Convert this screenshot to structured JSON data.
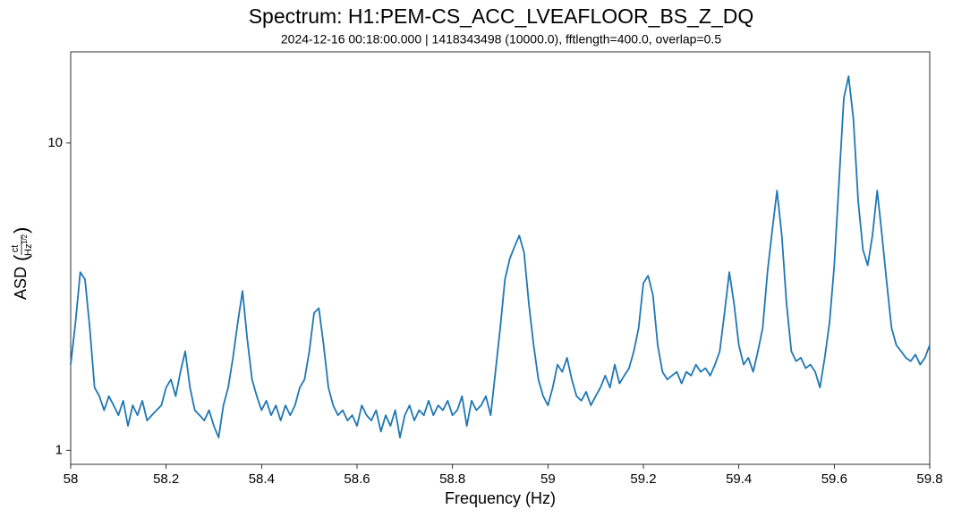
{
  "chart_data": {
    "type": "line",
    "title": "Spectrum: H1:PEM-CS_ACC_LVEAFLOOR_BS_Z_DQ",
    "subtitle": "2024-12-16 00:18:00.000 | 1418343498 (10000.0), fftlength=400.0, overlap=0.5",
    "xlabel": "Frequency (Hz)",
    "ylabel": {
      "text": "ASD",
      "numerator": "ct",
      "denominator": "Hz",
      "exponent": "1/2"
    },
    "xlim": [
      58,
      59.8
    ],
    "xticks": [
      58,
      58.2,
      58.4,
      58.6,
      58.8,
      59,
      59.2,
      59.4,
      59.6,
      59.8
    ],
    "ylim": [
      0.9,
      19.8
    ],
    "yticks": [
      1,
      10
    ],
    "yscale": "log",
    "x": [
      58.0,
      58.01,
      58.02,
      58.03,
      58.04,
      58.05,
      58.06,
      58.07,
      58.08,
      58.09,
      58.1,
      58.11,
      58.12,
      58.13,
      58.14,
      58.15,
      58.16,
      58.17,
      58.18,
      58.19,
      58.2,
      58.21,
      58.22,
      58.23,
      58.24,
      58.25,
      58.26,
      58.27,
      58.28,
      58.29,
      58.3,
      58.31,
      58.32,
      58.33,
      58.34,
      58.35,
      58.36,
      58.37,
      58.38,
      58.39,
      58.4,
      58.41,
      58.42,
      58.43,
      58.44,
      58.45,
      58.46,
      58.47,
      58.48,
      58.49,
      58.5,
      58.51,
      58.52,
      58.53,
      58.54,
      58.55,
      58.56,
      58.57,
      58.58,
      58.59,
      58.6,
      58.61,
      58.62,
      58.63,
      58.64,
      58.65,
      58.66,
      58.67,
      58.68,
      58.69,
      58.7,
      58.71,
      58.72,
      58.73,
      58.74,
      58.75,
      58.76,
      58.77,
      58.78,
      58.79,
      58.8,
      58.81,
      58.82,
      58.83,
      58.84,
      58.85,
      58.86,
      58.87,
      58.88,
      58.89,
      58.9,
      58.91,
      58.92,
      58.93,
      58.94,
      58.95,
      58.96,
      58.97,
      58.98,
      58.99,
      59.0,
      59.01,
      59.02,
      59.03,
      59.04,
      59.05,
      59.06,
      59.07,
      59.08,
      59.09,
      59.1,
      59.11,
      59.12,
      59.13,
      59.14,
      59.15,
      59.16,
      59.17,
      59.18,
      59.19,
      59.2,
      59.21,
      59.22,
      59.23,
      59.24,
      59.25,
      59.26,
      59.27,
      59.28,
      59.29,
      59.3,
      59.31,
      59.32,
      59.33,
      59.34,
      59.35,
      59.36,
      59.37,
      59.38,
      59.39,
      59.4,
      59.41,
      59.42,
      59.43,
      59.44,
      59.45,
      59.46,
      59.47,
      59.48,
      59.49,
      59.5,
      59.51,
      59.52,
      59.53,
      59.54,
      59.55,
      59.56,
      59.57,
      59.58,
      59.59,
      59.6,
      59.61,
      59.62,
      59.63,
      59.64,
      59.65,
      59.66,
      59.67,
      59.68,
      59.69,
      59.7,
      59.71,
      59.72,
      59.73,
      59.74,
      59.75,
      59.76,
      59.77,
      59.78,
      59.79,
      59.8
    ],
    "series": [
      {
        "color": "#1f77b4",
        "values": [
          1.9,
          2.6,
          3.8,
          3.6,
          2.5,
          1.6,
          1.5,
          1.35,
          1.5,
          1.4,
          1.3,
          1.45,
          1.2,
          1.4,
          1.3,
          1.45,
          1.25,
          1.3,
          1.35,
          1.4,
          1.6,
          1.7,
          1.5,
          1.8,
          2.1,
          1.6,
          1.35,
          1.3,
          1.25,
          1.35,
          1.2,
          1.1,
          1.4,
          1.6,
          2.0,
          2.6,
          3.3,
          2.3,
          1.7,
          1.5,
          1.35,
          1.45,
          1.3,
          1.4,
          1.25,
          1.4,
          1.3,
          1.4,
          1.6,
          1.7,
          2.1,
          2.8,
          2.9,
          2.2,
          1.6,
          1.4,
          1.3,
          1.35,
          1.25,
          1.3,
          1.2,
          1.4,
          1.3,
          1.25,
          1.35,
          1.15,
          1.3,
          1.2,
          1.35,
          1.1,
          1.3,
          1.4,
          1.25,
          1.35,
          1.3,
          1.45,
          1.3,
          1.4,
          1.35,
          1.45,
          1.3,
          1.35,
          1.5,
          1.2,
          1.45,
          1.35,
          1.4,
          1.5,
          1.3,
          1.8,
          2.5,
          3.6,
          4.2,
          4.6,
          5.0,
          4.4,
          3.0,
          2.2,
          1.7,
          1.5,
          1.4,
          1.6,
          1.9,
          1.8,
          2.0,
          1.7,
          1.5,
          1.45,
          1.55,
          1.4,
          1.5,
          1.6,
          1.75,
          1.6,
          1.9,
          1.65,
          1.75,
          1.85,
          2.1,
          2.5,
          3.5,
          3.7,
          3.2,
          2.2,
          1.8,
          1.7,
          1.75,
          1.8,
          1.65,
          1.8,
          1.75,
          1.9,
          1.8,
          1.85,
          1.75,
          1.9,
          2.1,
          2.8,
          3.8,
          3.0,
          2.2,
          1.9,
          2.0,
          1.8,
          2.1,
          2.5,
          3.8,
          5.2,
          7.0,
          5.0,
          3.0,
          2.1,
          1.95,
          2.0,
          1.85,
          1.9,
          1.8,
          1.6,
          2.0,
          2.6,
          4.0,
          7.5,
          14.0,
          16.5,
          12.0,
          6.5,
          4.5,
          4.0,
          5.0,
          7.0,
          5.0,
          3.5,
          2.5,
          2.2,
          2.1,
          2.0,
          1.95,
          2.05,
          1.9,
          2.0,
          2.2
        ]
      }
    ]
  }
}
